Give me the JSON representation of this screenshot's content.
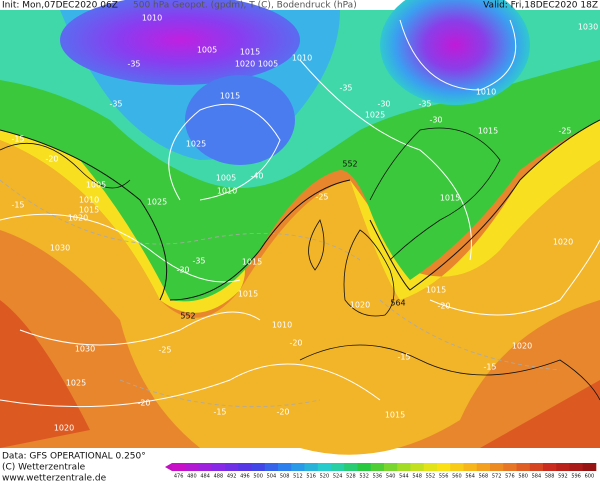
{
  "header": {
    "init": "Init: Mon,07DEC2020 06Z",
    "title": "500 hPa Geopot. (gpdm), T (C), Bodendruck (hPa)",
    "valid": "Valid: Fri,18DEC2020 18Z"
  },
  "map": {
    "isobar_labels": [
      1010,
      1005,
      1015,
      1020,
      1005,
      1010,
      1015,
      1025,
      1005,
      1010,
      1025,
      1005,
      1010,
      1015,
      1020,
      1030,
      1015,
      1015,
      1020,
      1010,
      1030,
      1025,
      1020,
      1015,
      1025,
      1010,
      1015,
      1015,
      1020,
      1015,
      1020,
      1030
    ],
    "height_labels": [
      552,
      552,
      564
    ],
    "temperature_labels": [
      -35,
      -35,
      -35,
      -30,
      -35,
      -30,
      -25,
      -15,
      -20,
      -15,
      -40,
      -25,
      -35,
      -30,
      -20,
      -20,
      -25,
      -20,
      -15,
      -20,
      -15,
      -15
    ]
  },
  "footer": {
    "data": "Data: GFS OPERATIONAL 0.250°",
    "copyright": "(C) Wetterzentrale",
    "url": "www.wetterzentrale.de"
  },
  "colorbar": {
    "ticks": [
      476,
      480,
      484,
      488,
      492,
      496,
      500,
      504,
      508,
      512,
      516,
      520,
      524,
      528,
      532,
      536,
      540,
      544,
      548,
      552,
      556,
      560,
      564,
      568,
      572,
      576,
      580,
      584,
      588,
      592,
      596,
      600
    ]
  }
}
